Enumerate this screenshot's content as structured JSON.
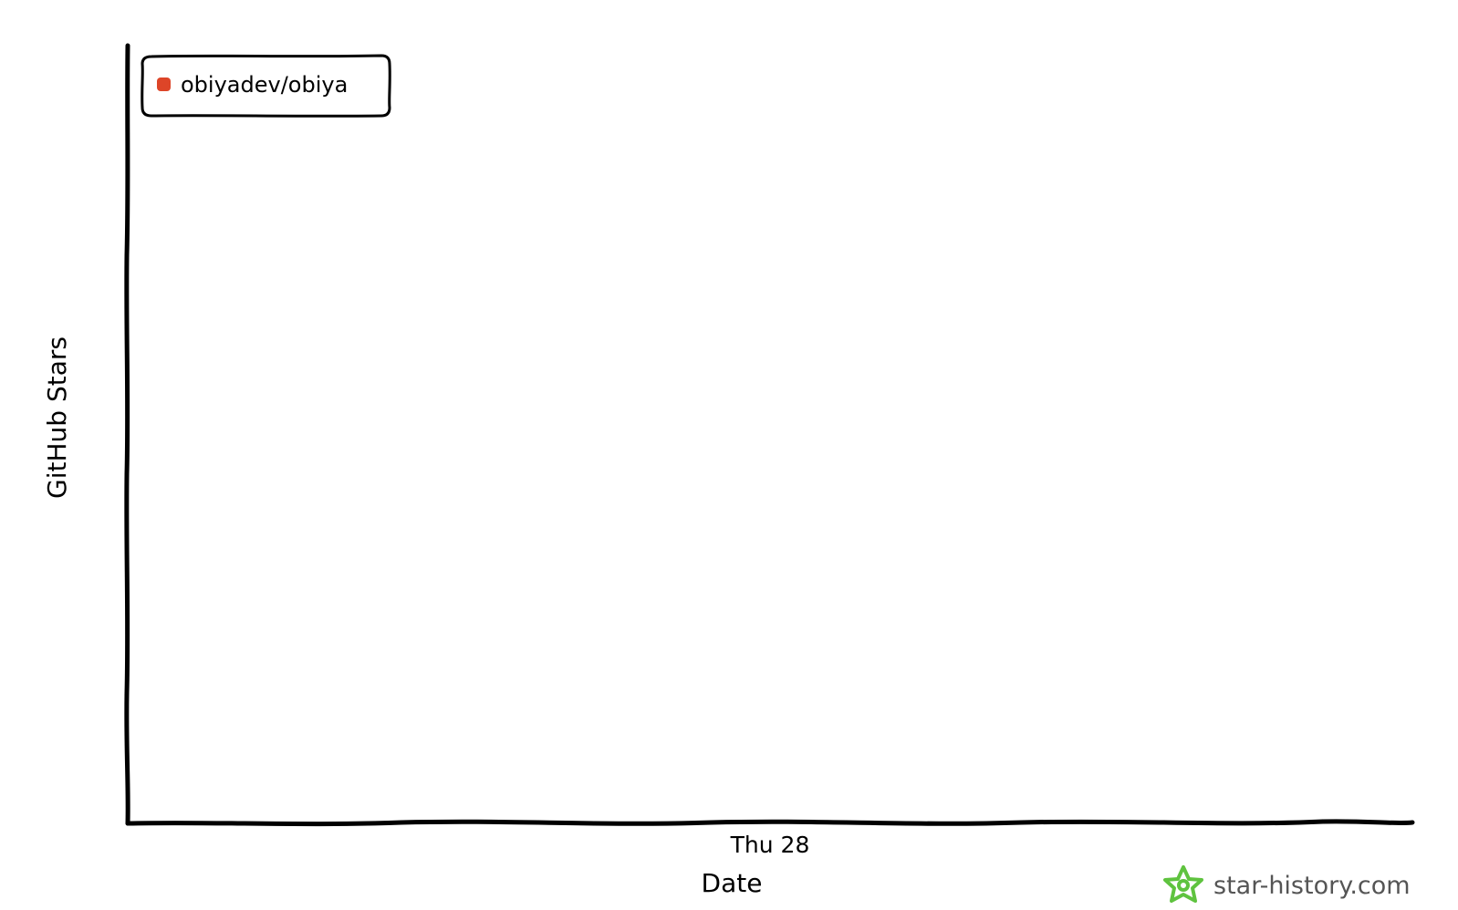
{
  "chart_data": {
    "type": "line",
    "title": "",
    "xlabel": "Date",
    "ylabel": "GitHub Stars",
    "x_ticks": [
      "Thu 28"
    ],
    "y_ticks": [],
    "series": [
      {
        "name": "obiyadev/obiya",
        "color": "#dd4528",
        "values": []
      }
    ],
    "legend_position": "top-left",
    "grid": false
  },
  "watermark": {
    "text": "star-history.com",
    "icon": "star-history-logo-icon",
    "icon_color": "#5fc33f"
  }
}
